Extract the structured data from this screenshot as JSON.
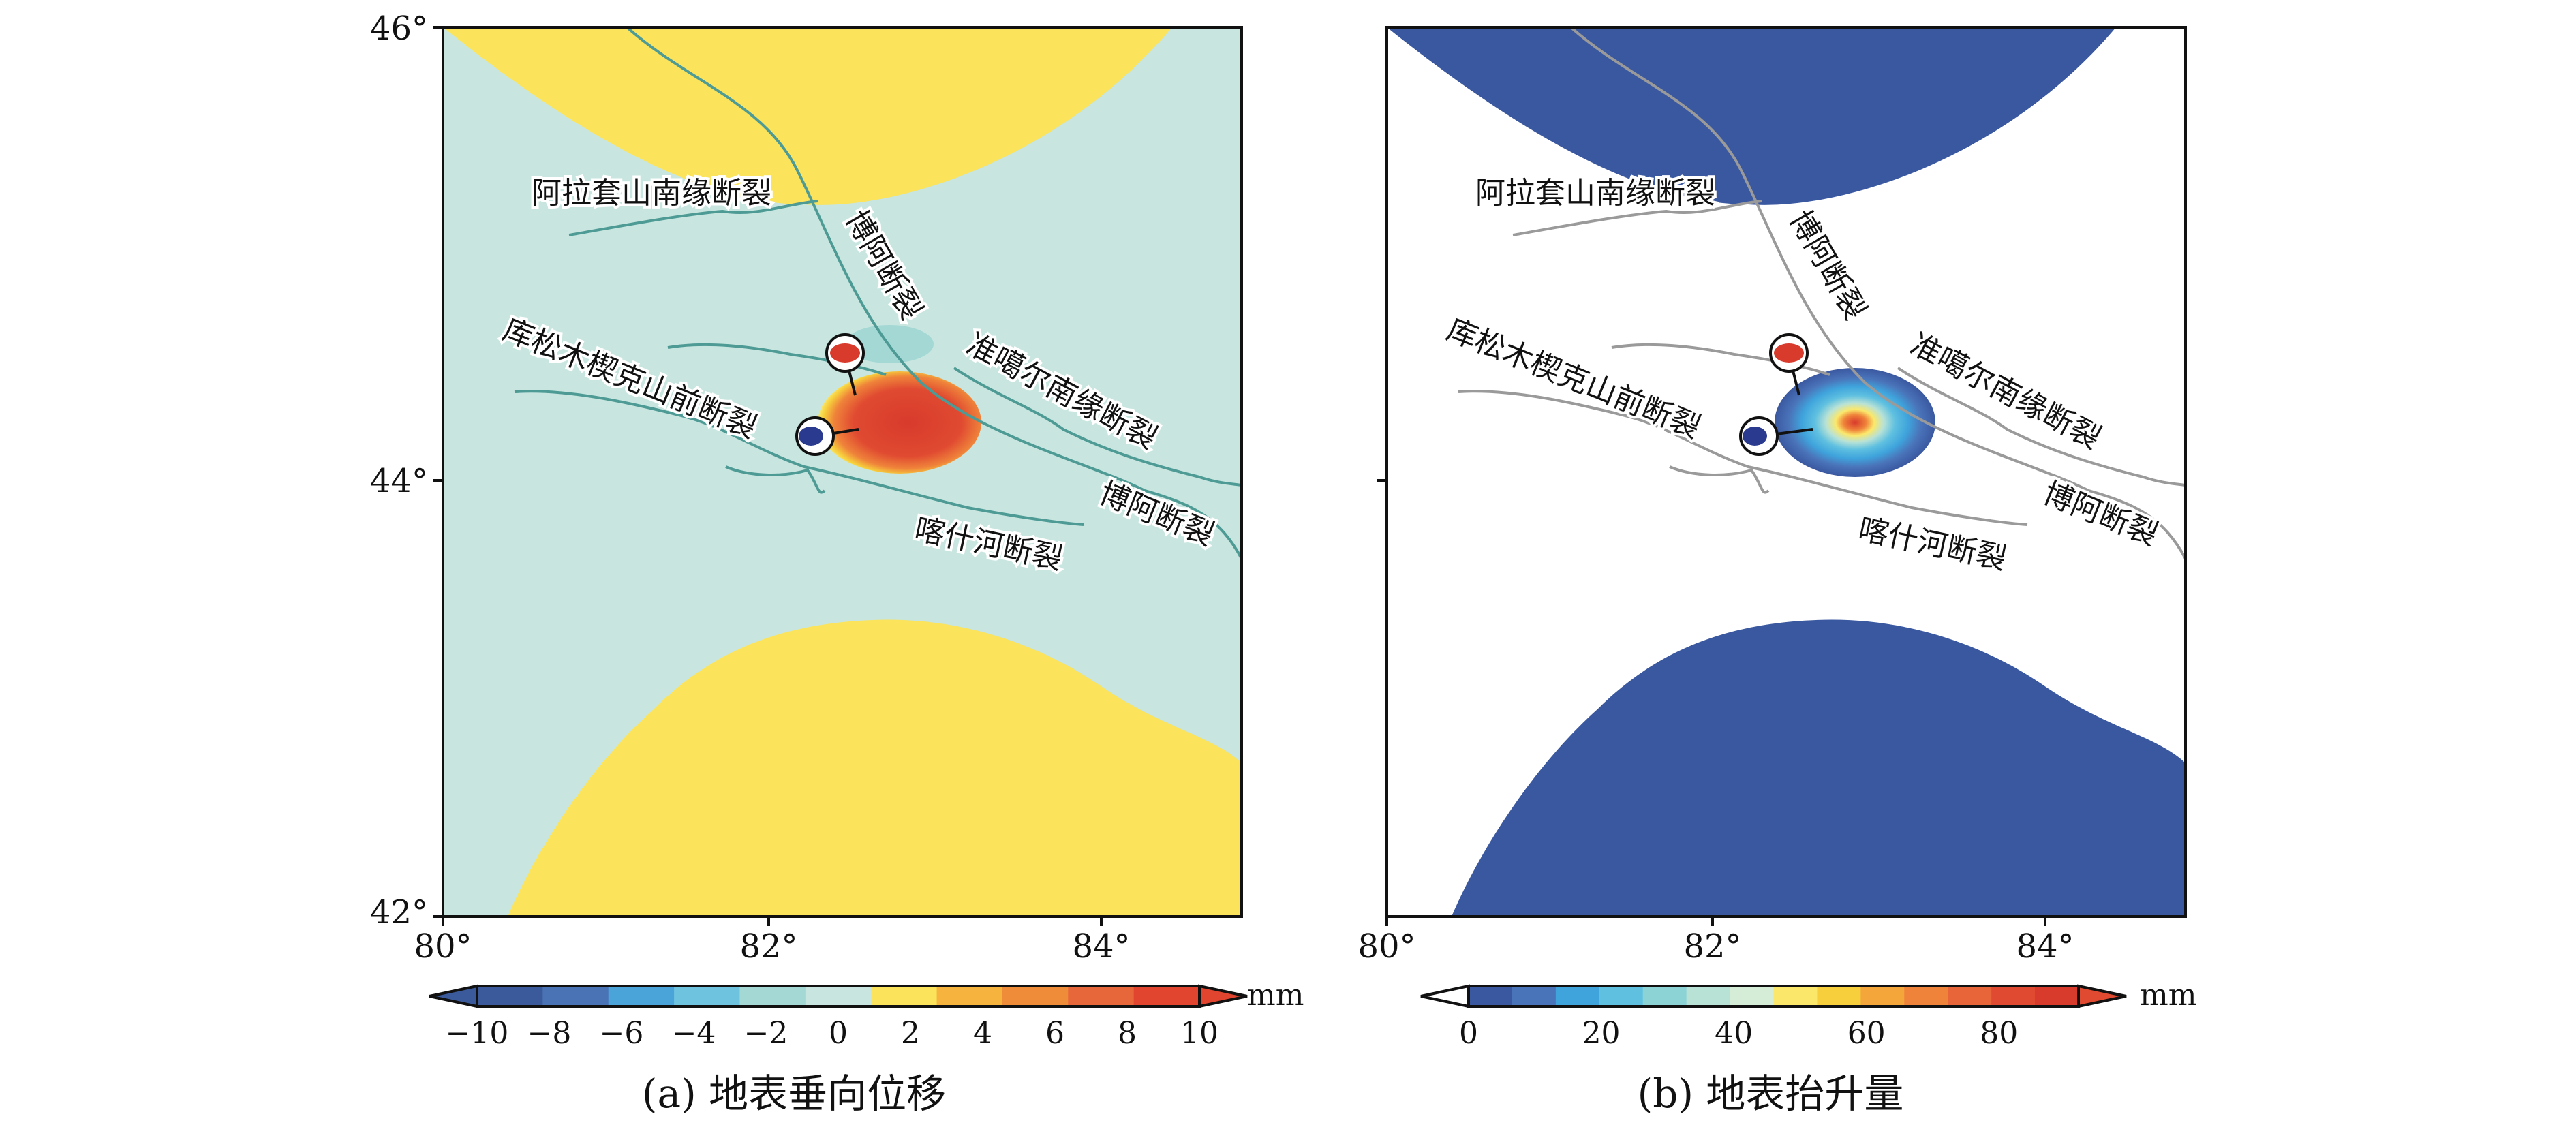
{
  "panels": [
    {
      "id": "a",
      "caption": "(a) 地表垂向位移",
      "y_ticks": [
        "46°",
        "44°",
        "42°"
      ],
      "x_ticks": [
        "80°",
        "82°",
        "84°"
      ],
      "faults": [
        "阿拉套山南缘断裂",
        "博阿断裂",
        "库松木楔克山前断裂",
        "准噶尔南缘断裂",
        "博阿断裂",
        "喀什河断裂"
      ],
      "colorbar": {
        "unit": "mm",
        "tick_labels": [
          "−10",
          "−8",
          "−6",
          "−4",
          "−2",
          "0",
          "2",
          "4",
          "6",
          "8",
          "10"
        ],
        "colors": [
          "#3a5a9c",
          "#4a73b6",
          "#4aa3d9",
          "#6ec3de",
          "#a4d8d5",
          "#c8e6df",
          "#fbe35c",
          "#f6b43e",
          "#ef8c3a",
          "#e8673a",
          "#e1442f"
        ]
      }
    },
    {
      "id": "b",
      "caption": "(b) 地表抬升量",
      "y_ticks": [
        "",
        "",
        ""
      ],
      "x_ticks": [
        "80°",
        "82°",
        "84°"
      ],
      "faults": [
        "阿拉套山南缘断裂",
        "博阿断裂",
        "库松木楔克山前断裂",
        "准噶尔南缘断裂",
        "博阿断裂",
        "喀什河断裂"
      ],
      "colorbar": {
        "unit": "mm",
        "tick_labels": [
          "0",
          "20",
          "40",
          "60",
          "80"
        ],
        "colors": [
          "#3a58a0",
          "#4a74ba",
          "#3fa4dc",
          "#5fc0e0",
          "#8cd3d6",
          "#b8e2d6",
          "#d5ecd6",
          "#fbe86b",
          "#f7cf3c",
          "#f4a63b",
          "#ef833a",
          "#e8653a",
          "#e04a31",
          "#d83a2c"
        ]
      }
    }
  ]
}
